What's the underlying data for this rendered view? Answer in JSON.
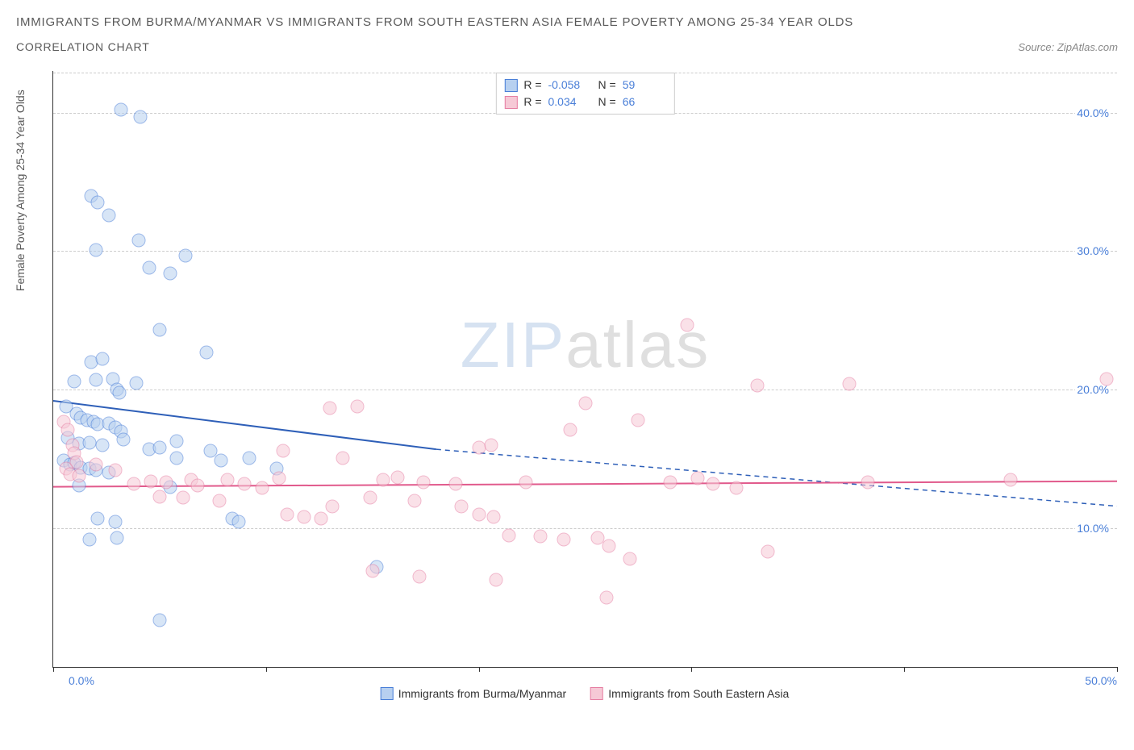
{
  "header": {
    "title": "IMMIGRANTS FROM BURMA/MYANMAR VS IMMIGRANTS FROM SOUTH EASTERN ASIA FEMALE POVERTY AMONG 25-34 YEAR OLDS",
    "subtitle": "CORRELATION CHART",
    "source_label": "Source:",
    "source_value": "ZipAtlas.com"
  },
  "watermark": {
    "a": "ZIP",
    "b": "atlas"
  },
  "chart": {
    "type": "scatter",
    "y_axis_label": "Female Poverty Among 25-34 Year Olds",
    "background_color": "#ffffff",
    "grid_color": "#cccccc",
    "xlim": [
      0,
      50
    ],
    "ylim": [
      0,
      43
    ],
    "x_ticks": [
      0,
      10,
      20,
      30,
      40,
      50
    ],
    "x_tick_labels": {
      "0": "0.0%",
      "50": "50.0%"
    },
    "y_ticks": [
      10,
      20,
      30,
      40
    ],
    "y_tick_labels": [
      "10.0%",
      "20.0%",
      "30.0%",
      "40.0%"
    ],
    "marker_radius": 8.5,
    "marker_opacity": 0.55,
    "line_width_solid": 2,
    "line_width_dash": 1.5,
    "stats_legend": [
      {
        "swatch_fill": "#b7d0f0",
        "swatch_stroke": "#4a7fd8",
        "r_label": "R =",
        "r_value": "-0.058",
        "n_label": "N =",
        "n_value": "59"
      },
      {
        "swatch_fill": "#f6c9d6",
        "swatch_stroke": "#e67fa3",
        "r_label": "R =",
        "r_value": "0.034",
        "n_label": "N =",
        "n_value": "66"
      }
    ],
    "bottom_legend": [
      {
        "swatch_fill": "#b7d0f0",
        "swatch_stroke": "#4a7fd8",
        "label": "Immigrants from Burma/Myanmar"
      },
      {
        "swatch_fill": "#f6c9d6",
        "swatch_stroke": "#e67fa3",
        "label": "Immigrants from South Eastern Asia"
      }
    ],
    "series": [
      {
        "name": "burma",
        "color_fill": "#b7d0f0",
        "color_stroke": "#4a7fd8",
        "trend_color": "#2e5fb8",
        "trend_solid": {
          "x1": 0,
          "y1": 19.2,
          "x2": 18,
          "y2": 15.7
        },
        "trend_dash": {
          "x1": 18,
          "y1": 15.7,
          "x2": 50,
          "y2": 11.6
        },
        "points": [
          [
            3.2,
            40.2
          ],
          [
            4.1,
            39.7
          ],
          [
            1.8,
            34.0
          ],
          [
            2.1,
            33.5
          ],
          [
            2.6,
            32.6
          ],
          [
            2.0,
            30.1
          ],
          [
            4.0,
            30.8
          ],
          [
            6.2,
            29.7
          ],
          [
            4.5,
            28.8
          ],
          [
            5.5,
            28.4
          ],
          [
            5.0,
            24.3
          ],
          [
            7.2,
            22.7
          ],
          [
            1.8,
            22.0
          ],
          [
            2.3,
            22.2
          ],
          [
            1.0,
            20.6
          ],
          [
            2.0,
            20.7
          ],
          [
            2.8,
            20.8
          ],
          [
            3.0,
            20.0
          ],
          [
            3.1,
            19.8
          ],
          [
            3.9,
            20.5
          ],
          [
            0.6,
            18.8
          ],
          [
            1.1,
            18.3
          ],
          [
            1.3,
            18.0
          ],
          [
            1.6,
            17.8
          ],
          [
            1.9,
            17.7
          ],
          [
            2.1,
            17.5
          ],
          [
            2.6,
            17.6
          ],
          [
            2.9,
            17.3
          ],
          [
            3.2,
            17.0
          ],
          [
            0.7,
            16.5
          ],
          [
            1.2,
            16.1
          ],
          [
            1.7,
            16.2
          ],
          [
            2.3,
            16.0
          ],
          [
            3.3,
            16.4
          ],
          [
            5.8,
            16.3
          ],
          [
            0.5,
            14.9
          ],
          [
            0.8,
            14.6
          ],
          [
            1.0,
            14.7
          ],
          [
            1.3,
            14.4
          ],
          [
            1.7,
            14.3
          ],
          [
            2.0,
            14.2
          ],
          [
            2.6,
            14.0
          ],
          [
            4.5,
            15.7
          ],
          [
            5.0,
            15.8
          ],
          [
            5.8,
            15.1
          ],
          [
            7.4,
            15.6
          ],
          [
            7.9,
            14.9
          ],
          [
            9.2,
            15.1
          ],
          [
            10.5,
            14.3
          ],
          [
            1.2,
            13.1
          ],
          [
            5.5,
            13.0
          ],
          [
            2.1,
            10.7
          ],
          [
            2.9,
            10.5
          ],
          [
            8.4,
            10.7
          ],
          [
            8.7,
            10.5
          ],
          [
            1.7,
            9.2
          ],
          [
            3.0,
            9.3
          ],
          [
            15.2,
            7.2
          ],
          [
            5.0,
            3.4
          ]
        ]
      },
      {
        "name": "se_asia",
        "color_fill": "#f6c9d6",
        "color_stroke": "#e67fa3",
        "trend_color": "#e15a8c",
        "trend_solid": {
          "x1": 0,
          "y1": 13.0,
          "x2": 50,
          "y2": 13.4
        },
        "trend_dash": null,
        "points": [
          [
            29.8,
            24.7
          ],
          [
            49.5,
            20.8
          ],
          [
            33.1,
            20.3
          ],
          [
            37.4,
            20.4
          ],
          [
            25.0,
            19.0
          ],
          [
            27.5,
            17.8
          ],
          [
            13.0,
            18.7
          ],
          [
            14.3,
            18.8
          ],
          [
            24.3,
            17.1
          ],
          [
            20.0,
            15.8
          ],
          [
            20.6,
            16.0
          ],
          [
            10.8,
            15.6
          ],
          [
            13.6,
            15.1
          ],
          [
            0.5,
            17.7
          ],
          [
            0.7,
            17.1
          ],
          [
            0.9,
            16.0
          ],
          [
            1.0,
            15.4
          ],
          [
            1.1,
            14.8
          ],
          [
            0.6,
            14.3
          ],
          [
            0.8,
            13.9
          ],
          [
            1.2,
            13.8
          ],
          [
            2.0,
            14.6
          ],
          [
            2.9,
            14.2
          ],
          [
            3.8,
            13.2
          ],
          [
            4.6,
            13.4
          ],
          [
            5.3,
            13.3
          ],
          [
            6.5,
            13.5
          ],
          [
            6.8,
            13.1
          ],
          [
            8.2,
            13.5
          ],
          [
            9.0,
            13.2
          ],
          [
            9.8,
            12.9
          ],
          [
            10.6,
            13.6
          ],
          [
            15.5,
            13.5
          ],
          [
            16.2,
            13.7
          ],
          [
            17.4,
            13.3
          ],
          [
            18.9,
            13.2
          ],
          [
            22.2,
            13.3
          ],
          [
            29.0,
            13.3
          ],
          [
            30.3,
            13.6
          ],
          [
            31.0,
            13.2
          ],
          [
            32.1,
            12.9
          ],
          [
            38.3,
            13.3
          ],
          [
            45.0,
            13.5
          ],
          [
            5.0,
            12.3
          ],
          [
            6.1,
            12.2
          ],
          [
            7.8,
            12.0
          ],
          [
            11.0,
            11.0
          ],
          [
            11.8,
            10.8
          ],
          [
            12.6,
            10.7
          ],
          [
            13.1,
            11.6
          ],
          [
            14.9,
            12.2
          ],
          [
            17.0,
            12.0
          ],
          [
            19.2,
            11.6
          ],
          [
            20.0,
            11.0
          ],
          [
            20.7,
            10.8
          ],
          [
            21.4,
            9.5
          ],
          [
            22.9,
            9.4
          ],
          [
            24.0,
            9.2
          ],
          [
            25.6,
            9.3
          ],
          [
            26.1,
            8.7
          ],
          [
            27.1,
            7.8
          ],
          [
            15.0,
            6.9
          ],
          [
            17.2,
            6.5
          ],
          [
            20.8,
            6.3
          ],
          [
            26.0,
            5.0
          ],
          [
            33.6,
            8.3
          ]
        ]
      }
    ]
  }
}
